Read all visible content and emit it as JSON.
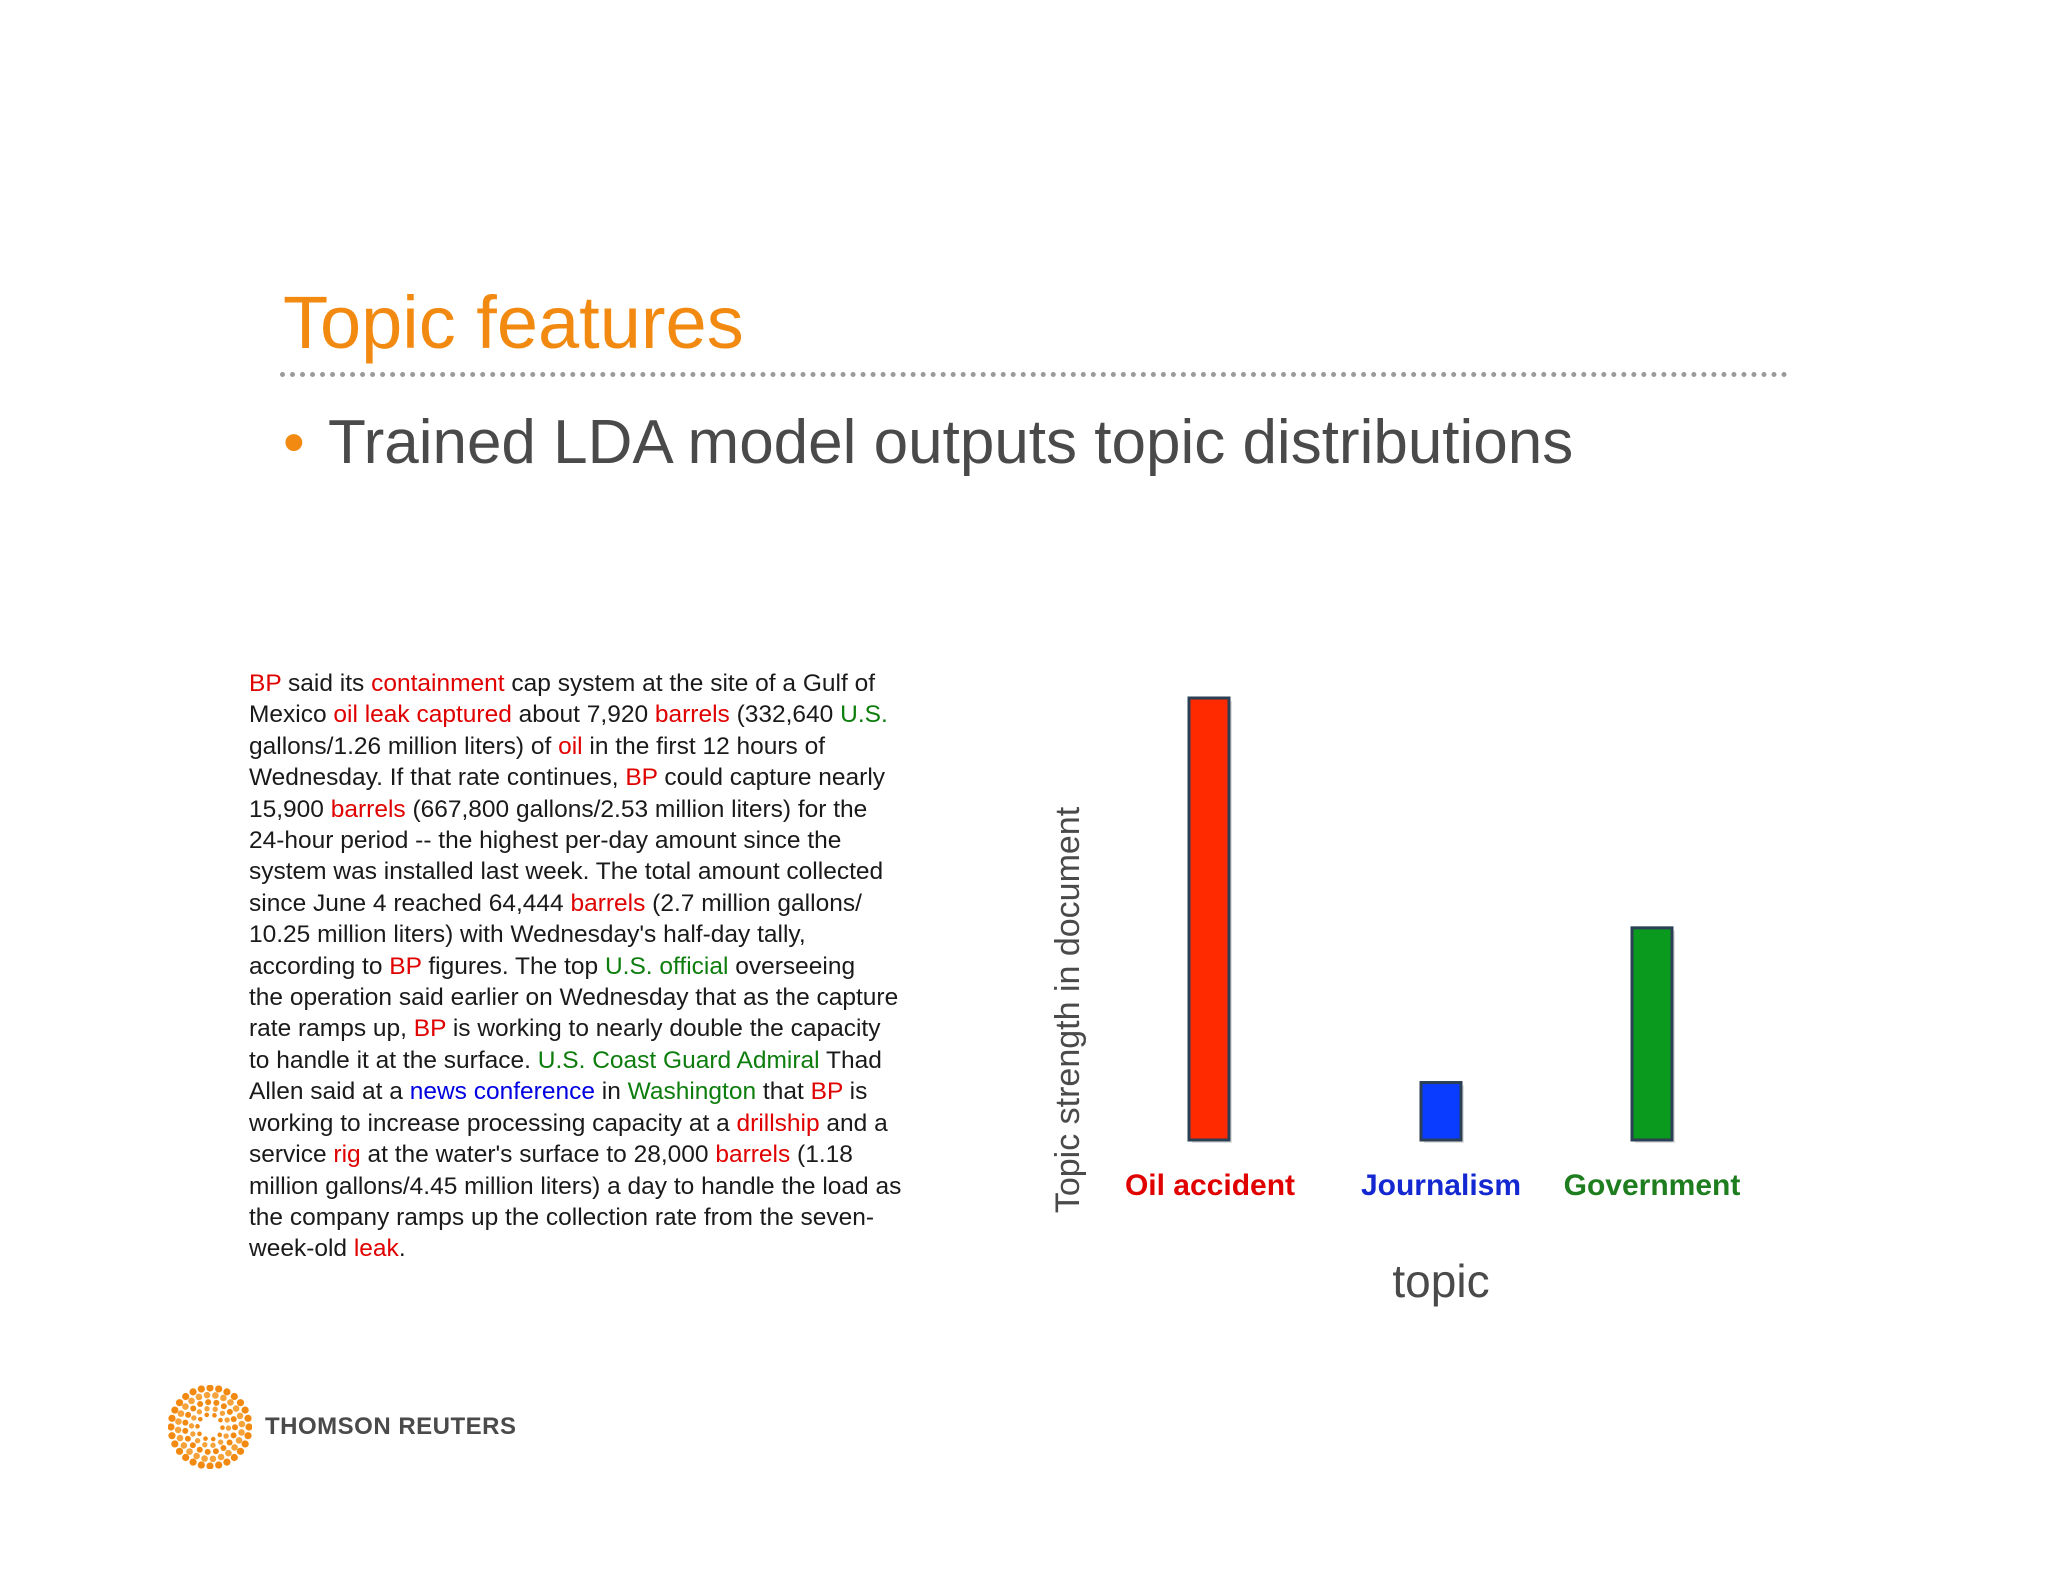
{
  "slide": {
    "title": "Topic features",
    "bullet": "Trained LDA model outputs topic distributions"
  },
  "article": {
    "lines": [
      [
        {
          "t": "BP",
          "c": "red"
        },
        {
          "t": " said its "
        },
        {
          "t": "containment",
          "c": "red"
        },
        {
          "t": " cap system at the site of a Gulf of"
        }
      ],
      [
        {
          "t": "Mexico "
        },
        {
          "t": "oil leak captured",
          "c": "red"
        },
        {
          "t": " about 7,920 "
        },
        {
          "t": "barrels",
          "c": "red"
        },
        {
          "t": " (332,640 "
        },
        {
          "t": "U.S.",
          "c": "green"
        }
      ],
      [
        {
          "t": "gallons/1.26 million liters) of "
        },
        {
          "t": "oil",
          "c": "red"
        },
        {
          "t": " in the first 12 hours of"
        }
      ],
      [
        {
          "t": "Wednesday.  If that rate continues, "
        },
        {
          "t": "BP",
          "c": "red"
        },
        {
          "t": " could capture nearly"
        }
      ],
      [
        {
          "t": "15,900 "
        },
        {
          "t": "barrels",
          "c": "red"
        },
        {
          "t": " (667,800 gallons/2.53 million liters) for the"
        }
      ],
      [
        {
          "t": "24-hour period -- the highest per-day amount since the"
        }
      ],
      [
        {
          "t": "system was installed last week.  The total amount collected"
        }
      ],
      [
        {
          "t": "since June 4 reached 64,444 "
        },
        {
          "t": "barrels",
          "c": "red"
        },
        {
          "t": " (2.7 million gallons/"
        }
      ],
      [
        {
          "t": "10.25 million liters) with Wednesday's half-day tally,"
        }
      ],
      [
        {
          "t": "according to "
        },
        {
          "t": "BP",
          "c": "red"
        },
        {
          "t": " figures.  The top "
        },
        {
          "t": "U.S. official",
          "c": "green"
        },
        {
          "t": " overseeing"
        }
      ],
      [
        {
          "t": "the operation said earlier on Wednesday that as the capture"
        }
      ],
      [
        {
          "t": "rate ramps up, "
        },
        {
          "t": "BP",
          "c": "red"
        },
        {
          "t": " is working to nearly double the capacity"
        }
      ],
      [
        {
          "t": "to handle it at the surface.  "
        },
        {
          "t": "U.S. Coast Guard Admiral",
          "c": "green"
        },
        {
          "t": " Thad"
        }
      ],
      [
        {
          "t": "Allen said at a "
        },
        {
          "t": "news conference",
          "c": "blue"
        },
        {
          "t": " in "
        },
        {
          "t": "Washington",
          "c": "green"
        },
        {
          "t": " that "
        },
        {
          "t": "BP",
          "c": "red"
        },
        {
          "t": " is"
        }
      ],
      [
        {
          "t": "working to increase processing capacity at a "
        },
        {
          "t": "drillship",
          "c": "red"
        },
        {
          "t": " and a"
        }
      ],
      [
        {
          "t": "service "
        },
        {
          "t": "rig",
          "c": "red"
        },
        {
          "t": " at the water's surface to 28,000 "
        },
        {
          "t": "barrels",
          "c": "red"
        },
        {
          "t": " (1.18"
        }
      ],
      [
        {
          "t": "million gallons/4.45 million liters) a day to handle the load as"
        }
      ],
      [
        {
          "t": "the company ramps up the collection rate from the seven-"
        }
      ],
      [
        {
          "t": "week-old "
        },
        {
          "t": "leak",
          "c": "red"
        },
        {
          "t": "."
        }
      ]
    ]
  },
  "colors": {
    "red": "#e00000",
    "green": "#0d7d0d",
    "blue": "#0000e0",
    "title_orange": "#f28a12"
  },
  "chart_data": {
    "type": "bar",
    "categories": [
      "Oil accident",
      "Journalism",
      "Government"
    ],
    "values": [
      1.0,
      0.13,
      0.48
    ],
    "colors": [
      "#ff2a00",
      "#0a3cff",
      "#0a9a1e"
    ],
    "label_colors": [
      "#e00000",
      "#1428d2",
      "#1e7d1e"
    ],
    "xlabel": "topic",
    "ylabel": "Topic strength in document",
    "ylim": [
      0,
      1
    ],
    "grid": false,
    "legend": "none"
  },
  "footer": {
    "brand": "THOMSON REUTERS",
    "logo": "thomson-reuters-dot-logo"
  }
}
